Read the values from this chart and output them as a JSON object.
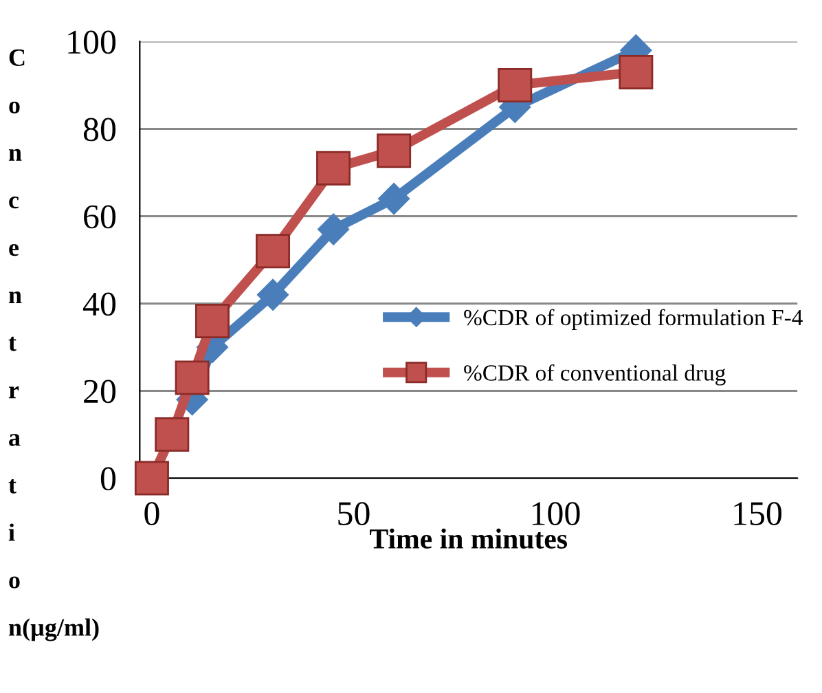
{
  "chart_data": {
    "type": "line",
    "xlabel": "Time in minutes",
    "ylabel": "Concentration(µg/ml)",
    "x": [
      0,
      5,
      10,
      15,
      30,
      45,
      60,
      90,
      120
    ],
    "series": [
      {
        "name": "%CDR of optimized formulation F-4",
        "color": "#4a7ebb",
        "marker": "diamond",
        "values": [
          null,
          null,
          18,
          30,
          42,
          57,
          64,
          85,
          98
        ]
      },
      {
        "name": "%CDR of conventional drug",
        "color": "#c0504d",
        "marker": "square",
        "values": [
          0,
          10,
          23,
          36,
          52,
          71,
          75,
          90,
          93
        ]
      }
    ],
    "xlim": [
      -3,
      160
    ],
    "ylim": [
      0,
      100
    ],
    "xticks": [
      0,
      50,
      100,
      150
    ],
    "yticks": [
      0,
      20,
      40,
      60,
      80,
      100
    ],
    "grid": "y",
    "legend": "right"
  }
}
